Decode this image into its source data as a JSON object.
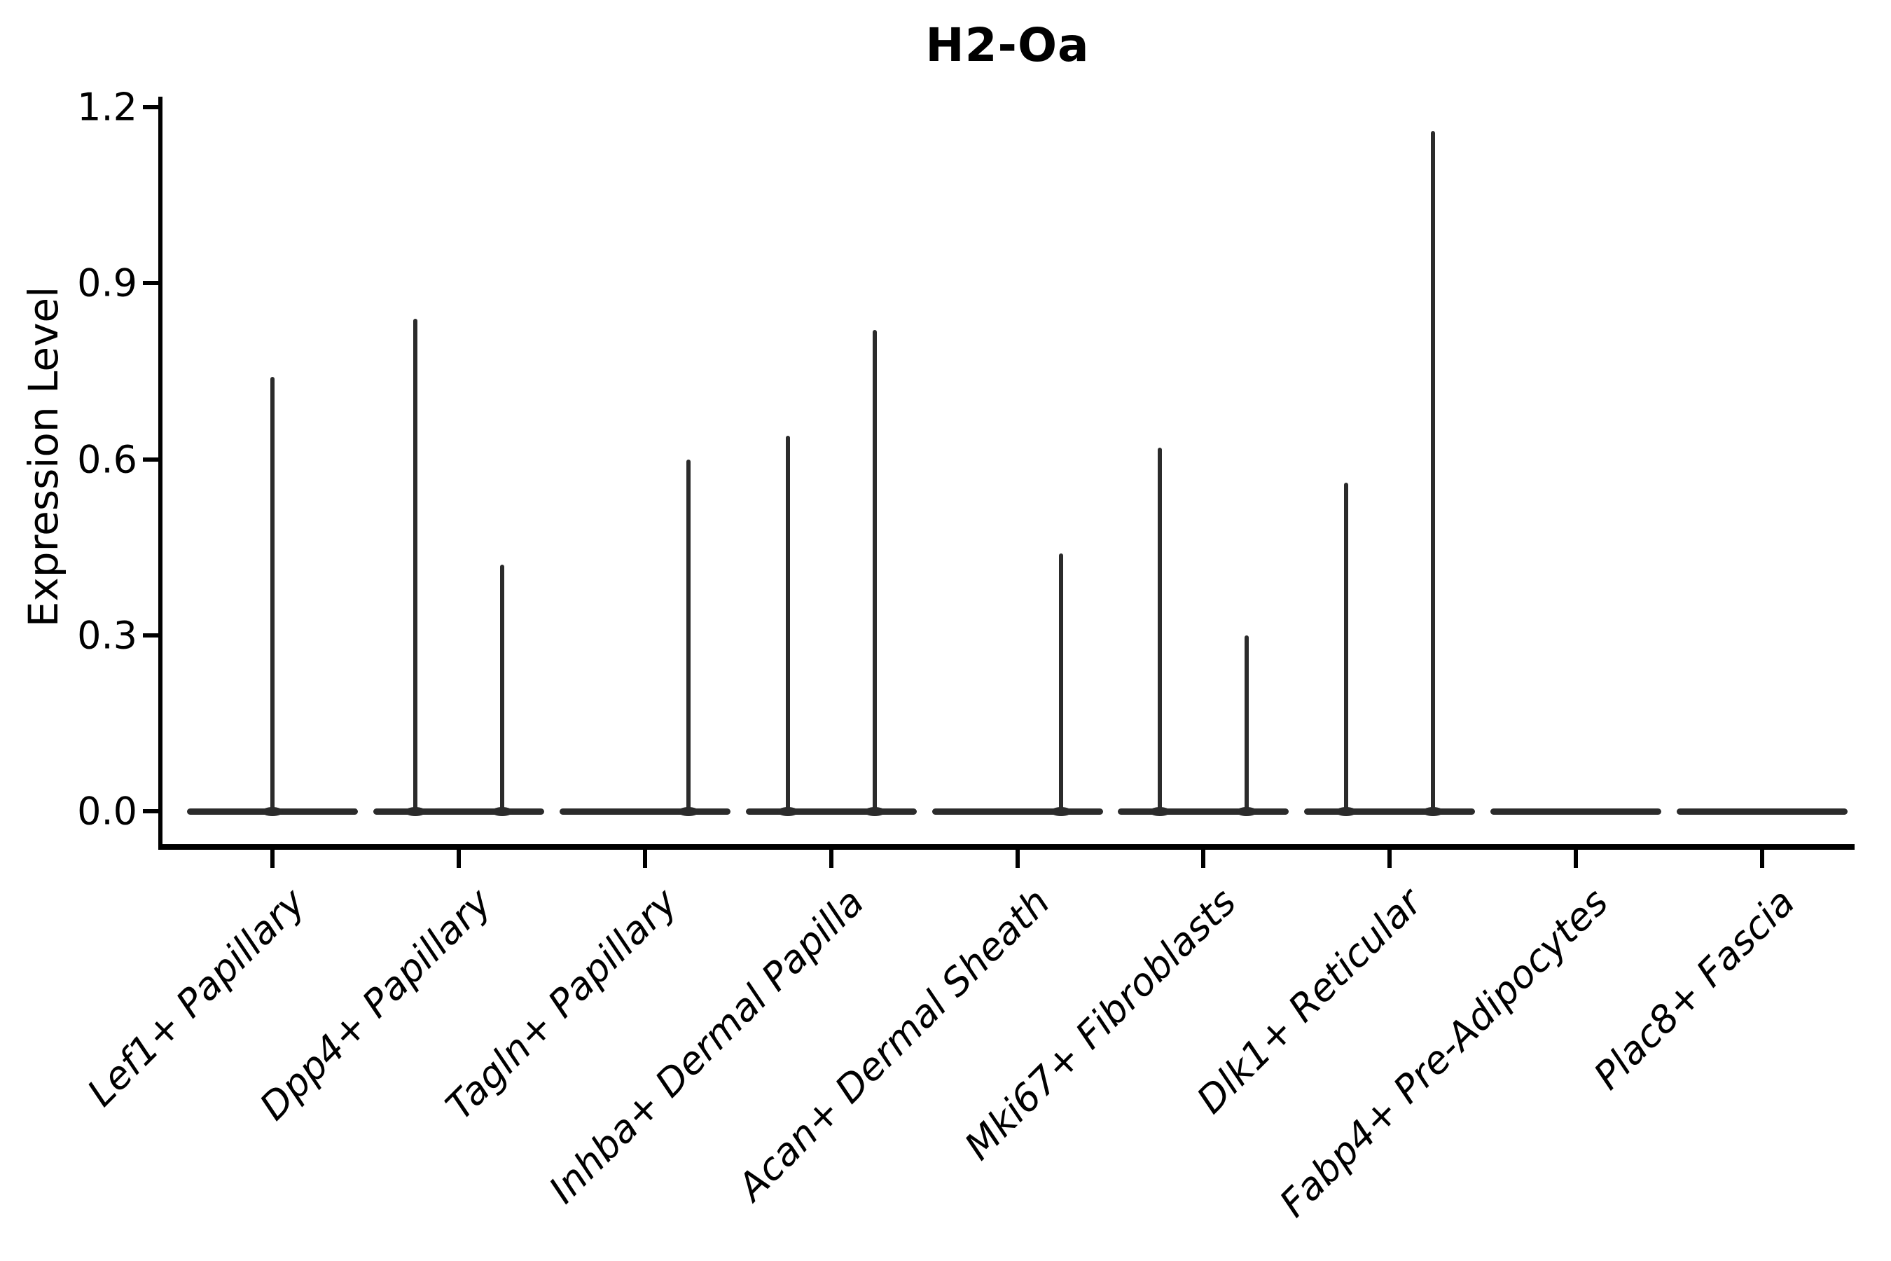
{
  "chart_data": {
    "type": "violin",
    "title": "H2-Oa",
    "ylabel": "Expression Level",
    "xlabel": "",
    "y_axis": {
      "ticks": [
        "0.0",
        "0.3",
        "0.6",
        "0.9",
        "1.2"
      ],
      "tick_values": [
        0.0,
        0.3,
        0.6,
        0.9,
        1.2
      ],
      "ylim": [
        0.0,
        1.2
      ]
    },
    "legend": "none",
    "grid": "off",
    "stroke_color": "#2b2b2b",
    "axis_color": "#000000",
    "categories": [
      "Lef1+ Papillary",
      "Dpp4+ Papillary",
      "Tagln+ Papillary",
      "Inhba+ Dermal Papilla",
      "Acan+ Dermal Sheath",
      "Mki67+ Fibroblasts",
      "Dlk1+ Reticular",
      "Fabp4+ Pre-Adipocytes",
      "Plac8+ Fascia"
    ],
    "violins": [
      {
        "category": "Lef1+ Papillary",
        "baseline": 0.0,
        "spikes": [
          {
            "pos": "center",
            "max": 0.74
          }
        ]
      },
      {
        "category": "Dpp4+ Papillary",
        "baseline": 0.0,
        "spikes": [
          {
            "pos": "left",
            "max": 0.84
          },
          {
            "pos": "right",
            "max": 0.42
          }
        ]
      },
      {
        "category": "Tagln+ Papillary",
        "baseline": 0.0,
        "spikes": [
          {
            "pos": "right",
            "max": 0.6
          }
        ]
      },
      {
        "category": "Inhba+ Dermal Papilla",
        "baseline": 0.0,
        "spikes": [
          {
            "pos": "left",
            "max": 0.64
          },
          {
            "pos": "right",
            "max": 0.82
          }
        ]
      },
      {
        "category": "Acan+ Dermal Sheath",
        "baseline": 0.0,
        "spikes": [
          {
            "pos": "right",
            "max": 0.44
          }
        ]
      },
      {
        "category": "Mki67+ Fibroblasts",
        "baseline": 0.0,
        "spikes": [
          {
            "pos": "left",
            "max": 0.62
          },
          {
            "pos": "right",
            "max": 0.3
          }
        ]
      },
      {
        "category": "Dlk1+ Reticular",
        "baseline": 0.0,
        "spikes": [
          {
            "pos": "left",
            "max": 0.56
          },
          {
            "pos": "right",
            "max": 1.16
          }
        ]
      },
      {
        "category": "Fabp4+ Pre-Adipocytes",
        "baseline": 0.0,
        "spikes": []
      },
      {
        "category": "Plac8+ Fascia",
        "baseline": 0.0,
        "spikes": []
      }
    ]
  }
}
